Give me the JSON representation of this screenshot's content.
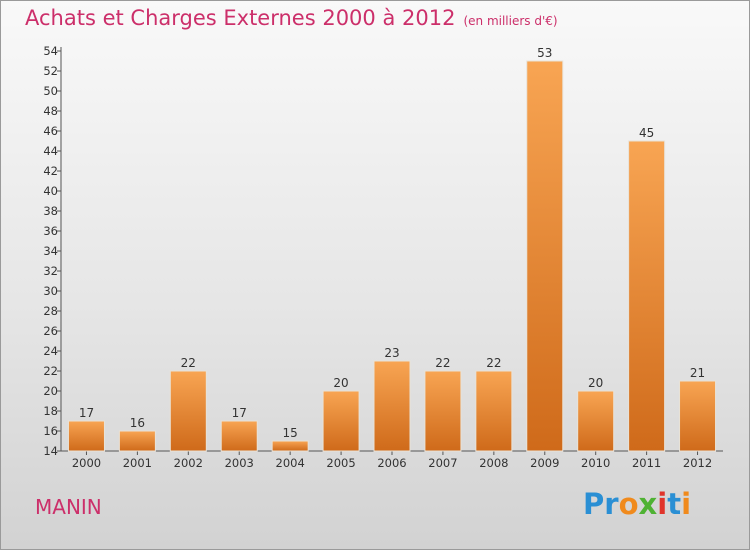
{
  "title": "Achats et Charges Externes 2000 à 2012",
  "subtitle": "(en milliers d'€)",
  "commune": "MANIN",
  "logo": {
    "text": "Proxiti",
    "letters": [
      {
        "ch": "P",
        "color": "#2a8fd4"
      },
      {
        "ch": "r",
        "color": "#2a8fd4"
      },
      {
        "ch": "o",
        "color": "#f08a1c"
      },
      {
        "ch": "x",
        "color": "#4fb233"
      },
      {
        "ch": "i",
        "color": "#e0342b"
      },
      {
        "ch": "t",
        "color": "#2a8fd4"
      },
      {
        "ch": "i",
        "color": "#f08a1c"
      }
    ]
  },
  "colors": {
    "title": "#cc2f6a",
    "bar_top": "#f8a553",
    "bar_bottom": "#cf6a1a"
  },
  "chart_data": {
    "type": "bar",
    "categories": [
      "2000",
      "2001",
      "2002",
      "2003",
      "2004",
      "2005",
      "2006",
      "2007",
      "2008",
      "2009",
      "2010",
      "2011",
      "2012"
    ],
    "values": [
      17,
      16,
      22,
      17,
      15,
      20,
      23,
      22,
      22,
      53,
      20,
      45,
      21
    ],
    "ylim": [
      14,
      54
    ],
    "yticks": [
      14,
      16,
      18,
      20,
      22,
      24,
      26,
      28,
      30,
      32,
      34,
      36,
      38,
      40,
      42,
      44,
      46,
      48,
      50,
      52,
      54
    ],
    "grid": false,
    "data_labels": true
  }
}
